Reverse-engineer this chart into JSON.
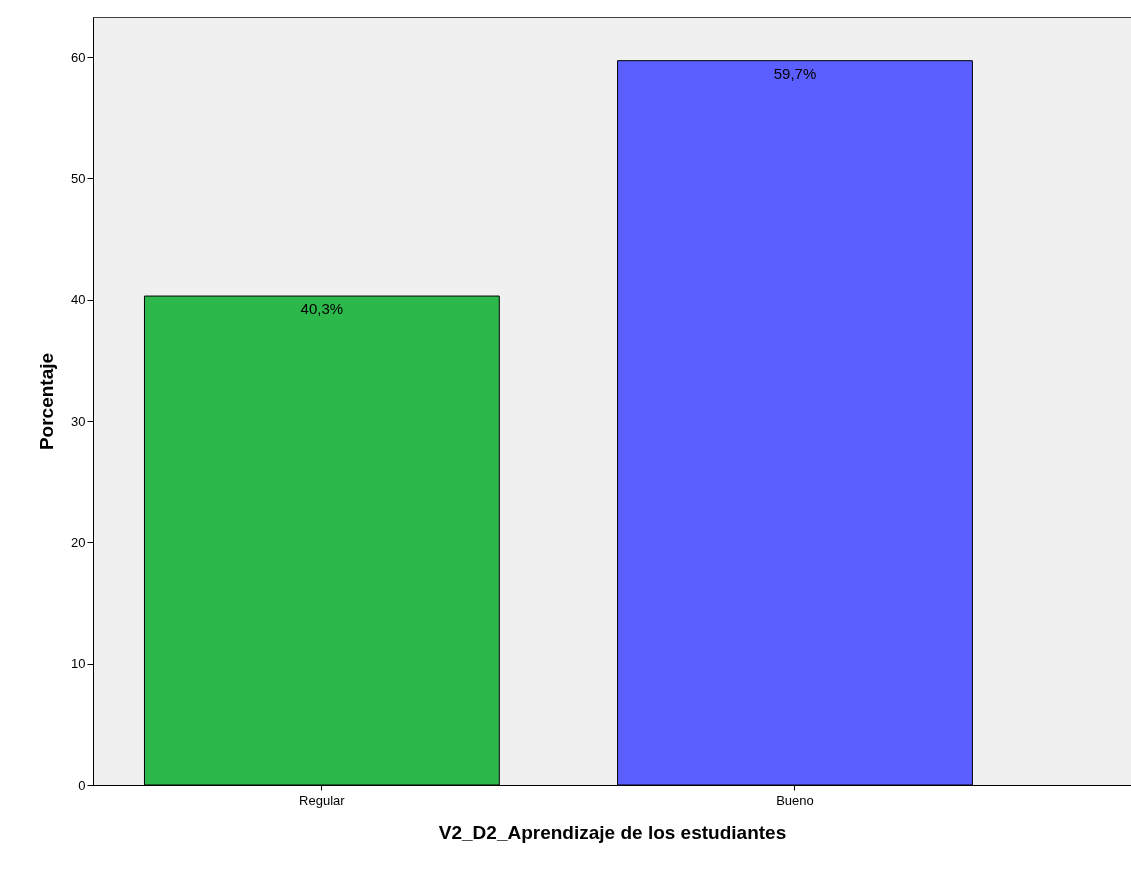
{
  "chart_data": {
    "type": "bar",
    "xlabel": "V2_D2_Aprendizaje de los estudiantes",
    "ylabel": "Porcentaje",
    "categories": [
      "Regular",
      "Bueno"
    ],
    "values": [
      40.3,
      59.7
    ],
    "colors": [
      "#2db84b",
      "#5b5fff"
    ],
    "value_labels": [
      "40,3%",
      "59,7%"
    ],
    "ylim": [
      0,
      63.3
    ],
    "yticks": [
      0,
      10,
      20,
      30,
      40,
      50,
      60
    ],
    "grid": false
  }
}
